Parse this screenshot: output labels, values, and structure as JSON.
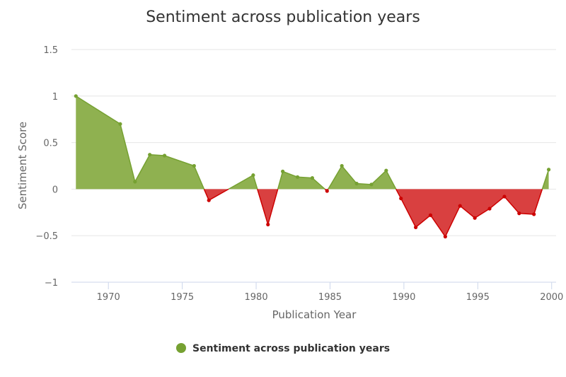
{
  "chart_data": {
    "type": "area",
    "title": "Sentiment across publication years",
    "xlabel": "Publication Year",
    "ylabel": "Sentiment Score",
    "xlim": [
      1967.5,
      2000.3
    ],
    "ylim": [
      -1,
      1.5
    ],
    "x_ticks": [
      1970,
      1975,
      1980,
      1985,
      1990,
      1995,
      2000
    ],
    "y_ticks": [
      -1,
      -0.5,
      0,
      0.5,
      1,
      1.5
    ],
    "y_tick_labels": [
      "−1",
      "−0.5",
      "0",
      "0.5",
      "1",
      "1.5"
    ],
    "grid": "horizontal",
    "legend": "bottom-center",
    "series": [
      {
        "name": "Sentiment across publication years",
        "color": "#76a132",
        "fill_positive": "#8fb150",
        "color_negative": "#cc0000",
        "fill_negative": "#d94040",
        "x": [
          1967.8,
          1970.8,
          1971.8,
          1972.8,
          1973.8,
          1975.8,
          1976.8,
          1979.8,
          1980.8,
          1981.8,
          1982.8,
          1983.8,
          1984.8,
          1985.8,
          1986.8,
          1987.8,
          1988.8,
          1989.8,
          1990.8,
          1991.8,
          1992.8,
          1993.8,
          1994.8,
          1995.8,
          1996.8,
          1997.8,
          1998.8,
          1999.8
        ],
        "y": [
          1.0,
          0.7,
          0.08,
          0.37,
          0.36,
          0.25,
          -0.12,
          0.15,
          -0.38,
          0.19,
          0.13,
          0.12,
          -0.02,
          0.25,
          0.06,
          0.05,
          0.2,
          -0.1,
          -0.41,
          -0.28,
          -0.51,
          -0.18,
          -0.31,
          -0.21,
          -0.08,
          -0.26,
          -0.27,
          0.21
        ]
      }
    ]
  }
}
